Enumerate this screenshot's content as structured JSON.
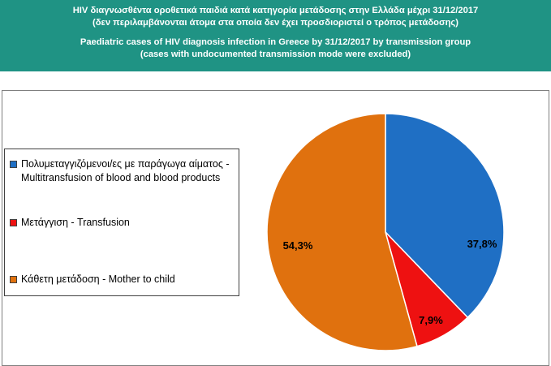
{
  "header": {
    "line1": "HIV διαγνωσθέντα οροθετικά παιδιά κατά κατηγορία μετάδοσης στην Ελλάδα μέχρι 31/12/2017",
    "line2": "(δεν περιλαμβάνονται άτομα στα οποία δεν έχει προσδιοριστεί ο τρόπος μετάδοσης)",
    "line3": "Paediatric cases of HIV diagnosis infection in Greece by 31/12/2017 by transmission group",
    "line4": "(cases with undocumented transmission mode were excluded)"
  },
  "colors": {
    "header_bg": "#1f9384",
    "blood": "#1f6fc4",
    "transfusion": "#ee1111",
    "mother": "#e0710e"
  },
  "chart_data": {
    "type": "pie",
    "categories": [
      "Πολυμεταγγιζόμενοι/ες με παράγωγα αίματος  -  Multitransfusion of blood and blood products",
      "Μετάγγιση - Transfusion",
      "Κάθετη μετάδοση - Mother to child"
    ],
    "values": [
      37.8,
      7.9,
      54.3
    ],
    "labels": [
      "37,8%",
      "7,9%",
      "54,3%"
    ],
    "legend_position": "left"
  },
  "legend": {
    "items": [
      {
        "label": "Πολυμεταγγιζόμενοι/ες με παράγωγα αίματος  -  Multitransfusion of blood and blood products",
        "color": "#1f6fc4"
      },
      {
        "label": "Μετάγγιση - Transfusion",
        "color": "#ee1111"
      },
      {
        "label": "Κάθετη μετάδοση - Mother to child",
        "color": "#e0710e"
      }
    ]
  }
}
